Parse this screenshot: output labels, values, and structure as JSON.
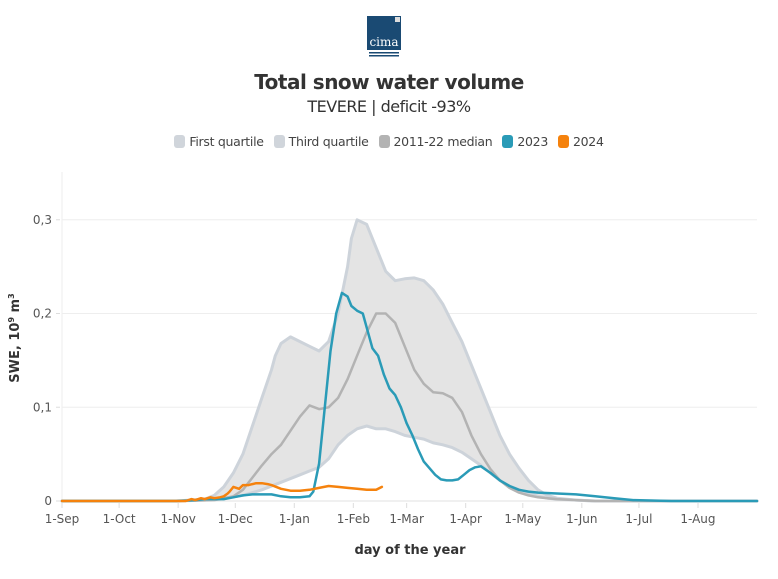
{
  "logo": {
    "text": "cima",
    "subtext": "RESEARCH FOUNDATION",
    "color": "#1a4a73"
  },
  "chart_data": {
    "type": "line",
    "title": "Total snow water volume",
    "subtitle": "TEVERE | deficit -93%",
    "xlabel": "day of the year",
    "ylabel": "SWE, 10⁹ m³",
    "ylabel_main": "SWE, 10",
    "ylabel_exp": "9",
    "ylabel_unit": " m",
    "ylabel_unit_exp": "3",
    "ylim": [
      0,
      0.35
    ],
    "xlim_days": [
      0,
      365
    ],
    "x_ticks": [
      {
        "label": "1-Sep",
        "day": 0
      },
      {
        "label": "1-Oct",
        "day": 30
      },
      {
        "label": "1-Nov",
        "day": 61
      },
      {
        "label": "1-Dec",
        "day": 91
      },
      {
        "label": "1-Jan",
        "day": 122
      },
      {
        "label": "1-Feb",
        "day": 153
      },
      {
        "label": "1-Mar",
        "day": 181
      },
      {
        "label": "1-Apr",
        "day": 212
      },
      {
        "label": "1-May",
        "day": 242
      },
      {
        "label": "1-Jun",
        "day": 273
      },
      {
        "label": "1-Jul",
        "day": 303
      },
      {
        "label": "1-Aug",
        "day": 334
      }
    ],
    "y_ticks": [
      {
        "label": "0",
        "value": 0
      },
      {
        "label": "0,1",
        "value": 0.1
      },
      {
        "label": "0,2",
        "value": 0.2
      },
      {
        "label": "0,3",
        "value": 0.3
      }
    ],
    "grid": true,
    "legend_position": "top-center",
    "legend": [
      {
        "name": "First quartile",
        "color": "#d0d5db"
      },
      {
        "name": "Third quartile",
        "color": "#d0d5db"
      },
      {
        "name": "2011-22 median",
        "color": "#b3b3b3"
      },
      {
        "name": "2023",
        "color": "#2a9bb7"
      },
      {
        "name": "2024",
        "color": "#f5820d"
      }
    ],
    "series": [
      {
        "name": "First quartile",
        "color": "#cdd3da",
        "x": [
          0,
          60,
          75,
          85,
          95,
          105,
          115,
          125,
          130,
          135,
          140,
          145,
          150,
          155,
          160,
          165,
          170,
          175,
          180,
          185,
          190,
          195,
          200,
          205,
          210,
          215,
          220,
          225,
          230,
          235,
          240,
          245,
          250,
          255,
          260,
          270,
          280,
          300,
          365
        ],
        "y": [
          0,
          0,
          0.001,
          0.003,
          0.006,
          0.012,
          0.02,
          0.028,
          0.032,
          0.036,
          0.045,
          0.06,
          0.07,
          0.077,
          0.08,
          0.077,
          0.077,
          0.074,
          0.07,
          0.068,
          0.066,
          0.062,
          0.06,
          0.057,
          0.052,
          0.045,
          0.038,
          0.03,
          0.022,
          0.016,
          0.012,
          0.008,
          0.005,
          0.003,
          0.002,
          0.001,
          0,
          0,
          0
        ]
      },
      {
        "name": "Third quartile",
        "color": "#cdd3da",
        "x": [
          0,
          60,
          75,
          80,
          85,
          90,
          95,
          100,
          105,
          110,
          112,
          115,
          120,
          125,
          130,
          135,
          140,
          145,
          150,
          152,
          155,
          160,
          165,
          170,
          175,
          180,
          185,
          190,
          195,
          200,
          205,
          210,
          215,
          220,
          225,
          230,
          235,
          240,
          245,
          250,
          255,
          260,
          270,
          280,
          300,
          365
        ],
        "y": [
          0,
          0,
          0.002,
          0.006,
          0.015,
          0.03,
          0.05,
          0.08,
          0.11,
          0.14,
          0.155,
          0.168,
          0.175,
          0.17,
          0.165,
          0.16,
          0.17,
          0.2,
          0.25,
          0.28,
          0.3,
          0.295,
          0.27,
          0.245,
          0.235,
          0.237,
          0.238,
          0.235,
          0.225,
          0.21,
          0.19,
          0.17,
          0.145,
          0.12,
          0.095,
          0.07,
          0.05,
          0.035,
          0.022,
          0.012,
          0.006,
          0.003,
          0.001,
          0,
          0,
          0
        ]
      },
      {
        "name": "2011-22 median",
        "color": "#b3b3b3",
        "x": [
          0,
          60,
          80,
          90,
          95,
          100,
          105,
          110,
          115,
          120,
          125,
          130,
          135,
          140,
          145,
          150,
          155,
          160,
          165,
          170,
          175,
          180,
          185,
          190,
          195,
          200,
          205,
          210,
          215,
          220,
          225,
          230,
          235,
          240,
          245,
          250,
          255,
          260,
          270,
          280,
          300,
          365
        ],
        "y": [
          0,
          0,
          0.001,
          0.005,
          0.012,
          0.025,
          0.038,
          0.05,
          0.06,
          0.075,
          0.09,
          0.102,
          0.098,
          0.1,
          0.11,
          0.13,
          0.155,
          0.18,
          0.2,
          0.2,
          0.19,
          0.165,
          0.14,
          0.125,
          0.116,
          0.115,
          0.11,
          0.095,
          0.07,
          0.05,
          0.034,
          0.022,
          0.014,
          0.009,
          0.006,
          0.004,
          0.003,
          0.002,
          0.001,
          0,
          0,
          0
        ]
      },
      {
        "name": "2023",
        "color": "#2a9bb7",
        "x": [
          0,
          60,
          70,
          75,
          80,
          85,
          90,
          95,
          100,
          105,
          110,
          115,
          120,
          125,
          130,
          132,
          135,
          138,
          141,
          144,
          147,
          150,
          152,
          155,
          158,
          160,
          163,
          166,
          169,
          172,
          175,
          178,
          181,
          184,
          187,
          190,
          193,
          196,
          199,
          202,
          205,
          208,
          211,
          214,
          217,
          220,
          225,
          230,
          235,
          240,
          245,
          250,
          260,
          270,
          280,
          290,
          300,
          320,
          365
        ],
        "y": [
          0,
          0,
          0.001,
          0.002,
          0.002,
          0.002,
          0.004,
          0.006,
          0.007,
          0.007,
          0.007,
          0.005,
          0.004,
          0.004,
          0.005,
          0.01,
          0.04,
          0.1,
          0.16,
          0.2,
          0.222,
          0.218,
          0.208,
          0.203,
          0.2,
          0.185,
          0.163,
          0.155,
          0.135,
          0.12,
          0.113,
          0.1,
          0.083,
          0.07,
          0.055,
          0.042,
          0.035,
          0.028,
          0.023,
          0.022,
          0.022,
          0.023,
          0.028,
          0.033,
          0.036,
          0.037,
          0.03,
          0.022,
          0.016,
          0.012,
          0.01,
          0.009,
          0.008,
          0.007,
          0.005,
          0.003,
          0.001,
          0,
          0
        ]
      },
      {
        "name": "2024",
        "color": "#f5820d",
        "x": [
          0,
          65,
          68,
          70,
          73,
          75,
          78,
          80,
          83,
          85,
          87,
          88,
          90,
          93,
          95,
          98,
          100,
          102,
          105,
          108,
          110,
          115,
          120,
          125,
          130,
          135,
          140,
          145,
          150,
          155,
          160,
          165,
          168
        ],
        "y": [
          0,
          0,
          0.002,
          0.001,
          0.003,
          0.002,
          0.004,
          0.003,
          0.004,
          0.005,
          0.008,
          0.01,
          0.015,
          0.013,
          0.017,
          0.017,
          0.018,
          0.019,
          0.019,
          0.018,
          0.017,
          0.013,
          0.011,
          0.011,
          0.012,
          0.014,
          0.016,
          0.015,
          0.014,
          0.013,
          0.012,
          0.012,
          0.015
        ]
      }
    ]
  }
}
